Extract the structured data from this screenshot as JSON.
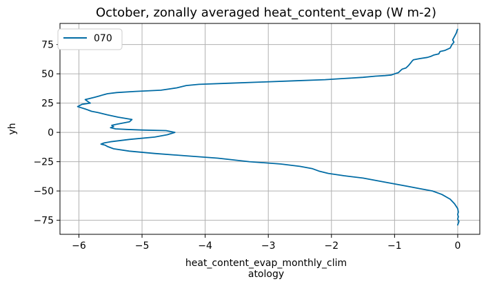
{
  "chart_data": {
    "type": "line",
    "title": "October, zonally averaged heat_content_evap (W m-2)",
    "xlabel_line1": "heat_content_evap_monthly_clim",
    "xlabel_line2": "atology",
    "ylabel": "yh",
    "xlim": [
      -6.3,
      0.35
    ],
    "ylim": [
      -87,
      93
    ],
    "xticks": [
      -6,
      -5,
      -4,
      -3,
      -2,
      -1,
      0
    ],
    "xtick_labels": [
      "−6",
      "−5",
      "−4",
      "−3",
      "−2",
      "−1",
      "0"
    ],
    "yticks": [
      75,
      50,
      25,
      0,
      -25,
      -50,
      -75
    ],
    "ytick_labels": [
      "75",
      "50",
      "25",
      "0",
      "−25",
      "−50",
      "−75"
    ],
    "grid": true,
    "legend_position": "upper-left",
    "series": [
      {
        "name": "070",
        "color": "#006BA4",
        "x": [
          0.0,
          -0.01,
          -0.02,
          -0.05,
          -0.08,
          -0.06,
          -0.09,
          -0.12,
          -0.2,
          -0.28,
          -0.3,
          -0.38,
          -0.42,
          -0.48,
          -0.6,
          -0.7,
          -0.72,
          -0.75,
          -0.78,
          -0.82,
          -0.88,
          -0.9,
          -0.92,
          -0.94,
          -1.0,
          -1.05,
          -1.15,
          -1.3,
          -1.5,
          -1.8,
          -2.1,
          -2.6,
          -3.1,
          -3.6,
          -4.1,
          -4.3,
          -4.45,
          -4.7,
          -5.1,
          -5.4,
          -5.55,
          -5.62,
          -5.68,
          -5.75,
          -5.9,
          -5.85,
          -5.82,
          -5.95,
          -6.02,
          -5.9,
          -5.8,
          -5.7,
          -5.55,
          -5.38,
          -5.16,
          -5.2,
          -5.4,
          -5.48,
          -5.45,
          -5.5,
          -5.42,
          -5.25,
          -5.0,
          -4.62,
          -4.48,
          -4.6,
          -4.8,
          -5.2,
          -5.5,
          -5.6,
          -5.65,
          -5.58,
          -5.55,
          -5.45,
          -5.2,
          -4.8,
          -4.3,
          -3.8,
          -3.3,
          -2.8,
          -2.5,
          -2.3,
          -2.2,
          -2.05,
          -1.8,
          -1.5,
          -1.2,
          -1.0,
          -0.8,
          -0.6,
          -0.4,
          -0.25,
          -0.12,
          -0.05,
          0.0,
          0.01,
          0.0,
          0.01,
          0.0,
          0.02,
          0.0
        ],
        "y": [
          88,
          87,
          85,
          82,
          79,
          77,
          75,
          72,
          70,
          69,
          67,
          66,
          65,
          64,
          63,
          62,
          61,
          59,
          57,
          55,
          54,
          53,
          52,
          51,
          50,
          49,
          48.5,
          48,
          47,
          46,
          45,
          44,
          43,
          42,
          41,
          40,
          38,
          36,
          35,
          34,
          33,
          32,
          31,
          30,
          28,
          26,
          25,
          24,
          22,
          20,
          18,
          17,
          15,
          13,
          11,
          9,
          7,
          6,
          5,
          4,
          3,
          2.5,
          2,
          1.5,
          0,
          -2,
          -4,
          -6,
          -8,
          -9,
          -10,
          -11,
          -12,
          -14,
          -16,
          -18,
          -20,
          -22,
          -25,
          -27,
          -29,
          -31,
          -33,
          -35,
          -37,
          -39,
          -42,
          -44,
          -46,
          -48,
          -50,
          -53,
          -57,
          -61,
          -65,
          -68,
          -70,
          -72,
          -74,
          -76,
          -79
        ]
      }
    ]
  }
}
